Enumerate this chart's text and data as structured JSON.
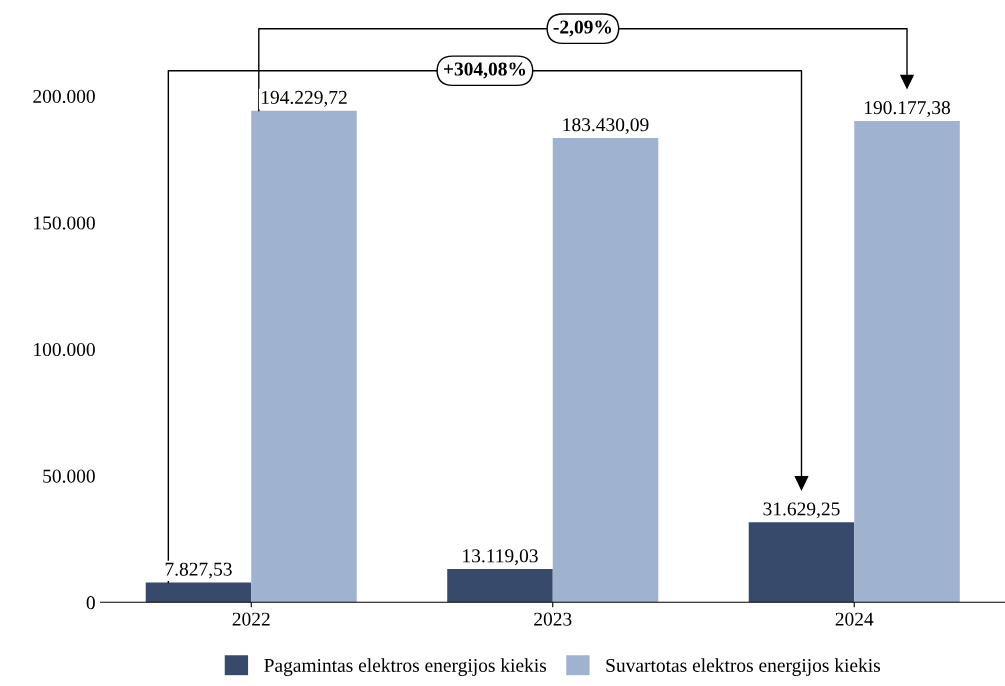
{
  "chart_data": {
    "type": "bar",
    "categories": [
      "2022",
      "2023",
      "2024"
    ],
    "series": [
      {
        "name": "Pagamintas elektros energijos kiekis",
        "color": "#374a6b",
        "values": [
          7827.53,
          13119.03,
          31629.25
        ],
        "value_labels": [
          "7.827,53",
          "13.119,03",
          "31.629,25"
        ]
      },
      {
        "name": "Suvartotas elektros energijos kiekis",
        "color": "#9fb2d0",
        "values": [
          194229.72,
          183430.09,
          190177.38
        ],
        "value_labels": [
          "194.229,72",
          "183.430,09",
          "190.177,38"
        ]
      }
    ],
    "ylim": [
      0,
      200000
    ],
    "yticks": [
      {
        "value": 0,
        "label": "0"
      },
      {
        "value": 50000,
        "label": "50.000"
      },
      {
        "value": 100000,
        "label": "100.000"
      },
      {
        "value": 150000,
        "label": "150.000"
      },
      {
        "value": 200000,
        "label": "200.000"
      }
    ],
    "annotations": [
      "+304,08%",
      "-2,09%"
    ],
    "grid": false,
    "legend": "bottom"
  }
}
